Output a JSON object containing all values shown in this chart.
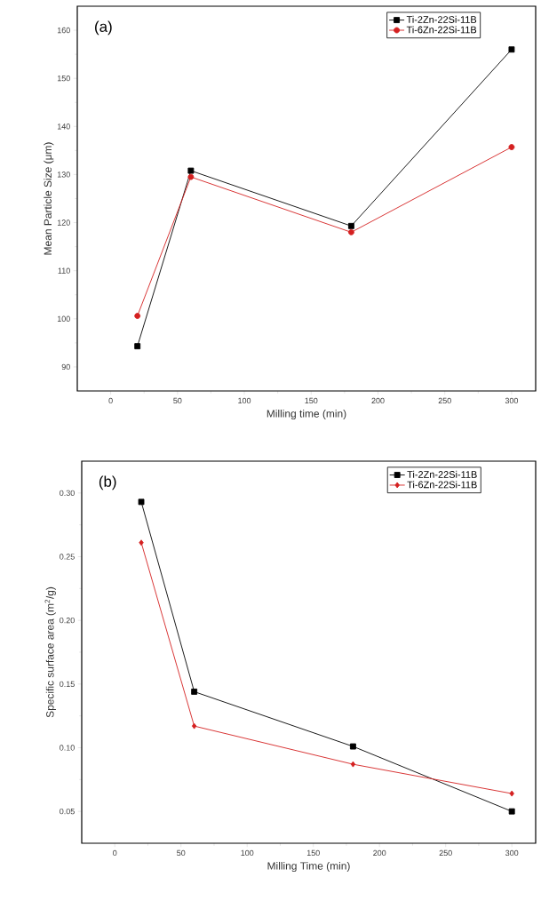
{
  "chart_data": [
    {
      "type": "line",
      "xlabel": "Milling time (min)",
      "ylabel": "Mean Particle Size (μm)",
      "annotations": [
        "(a)"
      ],
      "x": [
        20,
        60,
        180,
        300
      ],
      "xlim": [
        -25,
        318
      ],
      "ylim": [
        85,
        165
      ],
      "xticks": [
        0,
        50,
        100,
        150,
        200,
        250,
        300
      ],
      "yticks": [
        90,
        100,
        110,
        120,
        130,
        140,
        150,
        160
      ],
      "legend": "top right",
      "line_style": "solid",
      "series": [
        {
          "name": "Ti-2Zn-22Si-11B",
          "color": "#000000",
          "marker": "square",
          "values": [
            94.3,
            130.8,
            119.3,
            156.0
          ]
        },
        {
          "name": "Ti-6Zn-22Si-11B",
          "color": "#d42020",
          "marker": "circle",
          "values": [
            100.6,
            129.5,
            118.0,
            135.7
          ]
        }
      ]
    },
    {
      "type": "line",
      "xlabel": "Milling Time (min)",
      "ylabel": "Specific surface area (m$^{2}$/g)",
      "annotations": [
        "(b)"
      ],
      "x": [
        20,
        60,
        180,
        300
      ],
      "xlim": [
        -25,
        318
      ],
      "ylim": [
        0.025,
        0.325
      ],
      "xticks": [
        0,
        50,
        100,
        150,
        200,
        250,
        300
      ],
      "yticks": [
        {
          "value": 0.05,
          "label": "0.05"
        },
        {
          "value": 0.1,
          "label": "0.10"
        },
        {
          "value": 0.15,
          "label": "0.15"
        },
        {
          "value": 0.2,
          "label": "0.20"
        },
        {
          "value": 0.25,
          "label": "0.25"
        },
        {
          "value": 0.3,
          "label": "0.30"
        }
      ],
      "legend": "top right",
      "line_style": "solid",
      "series": [
        {
          "name": "Ti-2Zn-22Si-11B",
          "color": "#000000",
          "marker": "square",
          "values": [
            0.293,
            0.144,
            0.101,
            0.05
          ]
        },
        {
          "name": "Ti-6Zn-22Si-11B",
          "color": "#d42020",
          "marker": "diamond",
          "values": [
            0.261,
            0.117,
            0.087,
            0.064
          ]
        }
      ]
    }
  ]
}
